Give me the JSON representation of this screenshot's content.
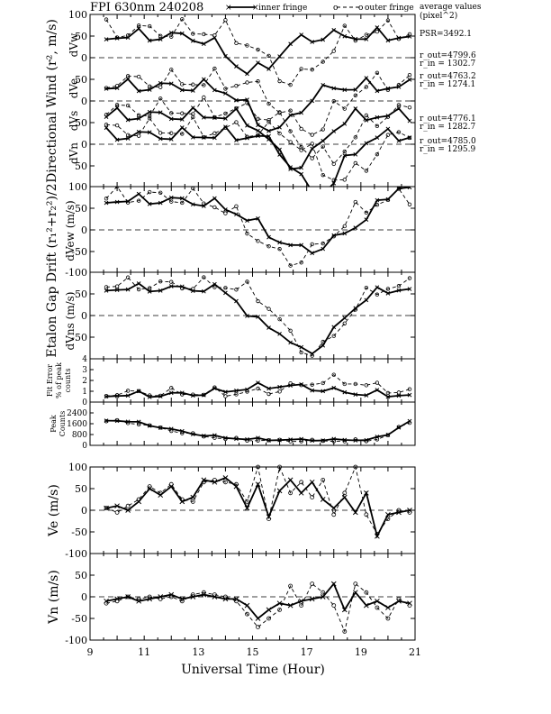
{
  "header": {
    "title": "FPI 630nm 240208",
    "legend_inner": "inner fringe",
    "legend_outer": "outer fringe",
    "avg_title": "average values",
    "avg_unit": "(pixel^2)",
    "psr": "PSR=3492.1"
  },
  "ring_values": [
    {
      "out": "r_out=4799.6",
      "in": "r_in = 1302.7"
    },
    {
      "out": "r_out=4763.2",
      "in": "r_in = 1274.1"
    },
    {
      "out": "r_out=4776.1",
      "in": "r_in = 1282.7"
    },
    {
      "out": "r_out=4785.0",
      "in": "r_in = 1295.9"
    }
  ],
  "x_axis": {
    "label": "Universal Time (Hour)",
    "range": [
      9,
      21
    ],
    "ticks": [
      9,
      11,
      13,
      15,
      17,
      19,
      21
    ]
  },
  "panels": [
    {
      "id": "directional",
      "ylabel": "Directional Wind (r², m/s)",
      "sublabels": [
        "dVw",
        "dVe",
        "dVs",
        "dVn"
      ],
      "ticks": [
        "100",
        "50",
        "0",
        "50",
        "0",
        "50",
        "0",
        "50"
      ]
    },
    {
      "id": "gap_ew",
      "ylabel": "dVew (m/s)",
      "ticks": [
        "100",
        "50",
        "0",
        "-50",
        "-100"
      ]
    },
    {
      "id": "gap_ns",
      "ylabel": "dVns (m/s)",
      "ticks": [
        "50",
        "0",
        "-50"
      ]
    },
    {
      "id": "fit_error",
      "ylabel": "Fit Error % of peak counts",
      "ticks": [
        "4",
        "3",
        "2",
        "1",
        "0"
      ]
    },
    {
      "id": "peak_counts",
      "ylabel": "Peak Counts",
      "ticks": [
        "2400",
        "1600",
        "800",
        "0"
      ]
    },
    {
      "id": "ve",
      "ylabel": "Ve (m/s)",
      "ticks": [
        "100",
        "50",
        "0",
        "-50",
        "-100"
      ]
    },
    {
      "id": "vn",
      "ylabel": "Vn (m/s)",
      "ticks": [
        "50",
        "0",
        "-50",
        "-100"
      ]
    }
  ],
  "etalon_label": "Etalon Gap Drift (r₁²+r₂²)/2",
  "chart_data": {
    "type": "line",
    "x_range": [
      9,
      21
    ],
    "panels": [
      {
        "id": "ve",
        "ylim": [
          -100,
          100
        ],
        "series": [
          {
            "name": "inner fringe",
            "x": [
              9.6,
              10.0,
              10.4,
              10.8,
              11.2,
              11.6,
              12.0,
              12.4,
              12.8,
              13.2,
              13.6,
              14.0,
              14.4,
              14.8,
              15.2,
              15.6,
              16.0,
              16.4,
              16.8,
              17.2,
              17.6,
              18.0,
              18.4,
              18.8,
              19.2,
              19.6,
              20.0,
              20.4,
              20.8
            ],
            "y": [
              5,
              10,
              0,
              20,
              50,
              35,
              55,
              20,
              30,
              70,
              65,
              75,
              55,
              5,
              60,
              -15,
              45,
              70,
              40,
              65,
              25,
              5,
              30,
              -5,
              40,
              -60,
              -10,
              -5,
              0
            ]
          },
          {
            "name": "outer fringe",
            "x": [
              9.6,
              10.0,
              10.4,
              10.8,
              11.2,
              11.6,
              12.0,
              12.4,
              12.8,
              13.2,
              13.6,
              14.0,
              14.4,
              14.8,
              15.2,
              15.6,
              16.0,
              16.4,
              16.8,
              17.2,
              17.6,
              18.0,
              18.4,
              18.8,
              19.2,
              19.6,
              20.0,
              20.4,
              20.8
            ],
            "y": [
              5,
              -5,
              10,
              25,
              55,
              40,
              60,
              25,
              20,
              65,
              70,
              65,
              60,
              20,
              100,
              -20,
              100,
              40,
              65,
              30,
              70,
              -10,
              40,
              100,
              -10,
              -55,
              -20,
              0,
              -5
            ]
          }
        ]
      },
      {
        "id": "vn",
        "ylim": [
          -100,
          50
        ],
        "series": [
          {
            "name": "inner fringe",
            "x": [
              9.6,
              10.0,
              10.4,
              10.8,
              11.2,
              11.6,
              12.0,
              12.4,
              12.8,
              13.2,
              13.6,
              14.0,
              14.4,
              14.8,
              15.2,
              15.6,
              16.0,
              16.4,
              16.8,
              17.2,
              17.6,
              18.0,
              18.4,
              18.8,
              19.2,
              19.6,
              20.0,
              20.4,
              20.8
            ],
            "y": [
              -10,
              -5,
              0,
              -10,
              -5,
              0,
              5,
              -5,
              0,
              5,
              0,
              -5,
              -5,
              -20,
              -50,
              -30,
              -15,
              -20,
              -10,
              -5,
              0,
              30,
              -30,
              10,
              -20,
              -10,
              -25,
              -10,
              -15
            ]
          },
          {
            "name": "outer fringe",
            "x": [
              9.6,
              10.0,
              10.4,
              10.8,
              11.2,
              11.6,
              12.0,
              12.4,
              12.8,
              13.2,
              13.6,
              14.0,
              14.4,
              14.8,
              15.2,
              15.6,
              16.0,
              16.4,
              16.8,
              17.2,
              17.6,
              18.0,
              18.4,
              18.8,
              19.2,
              19.6,
              20.0,
              20.4,
              20.8
            ],
            "y": [
              -15,
              -10,
              0,
              -5,
              0,
              -5,
              0,
              -10,
              5,
              10,
              5,
              0,
              -10,
              -40,
              -70,
              -50,
              -30,
              25,
              -20,
              30,
              10,
              -20,
              -80,
              30,
              10,
              -25,
              -50,
              -5,
              -20
            ]
          }
        ]
      }
    ]
  }
}
